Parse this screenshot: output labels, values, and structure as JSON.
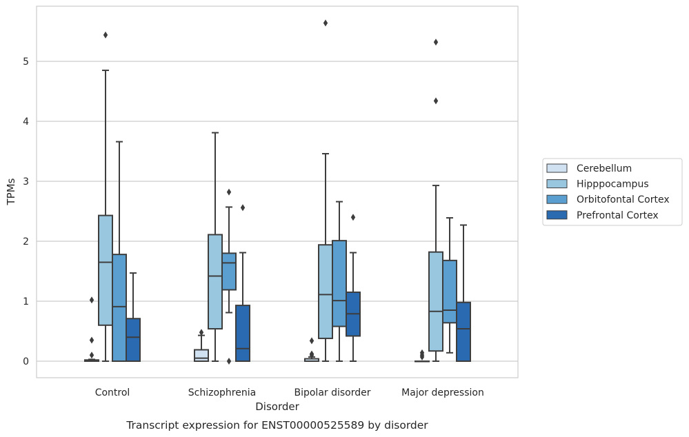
{
  "chart_data": {
    "type": "box",
    "xlabel": "Disorder",
    "ylabel": "TPMs",
    "caption": "Transcript expression for ENST00000525589 by disorder",
    "ylim": [
      -0.28,
      5.98
    ],
    "yticks": [
      0,
      1,
      2,
      3,
      4,
      5
    ],
    "grid": "horizontal",
    "legend_position": "right",
    "categories": [
      "Control",
      "Schizophrenia",
      "Bipolar disorder",
      "Major depression"
    ],
    "series": [
      {
        "name": "Cerebellum",
        "color": "#d0e1f1",
        "boxes": [
          {
            "whislo": 0.0,
            "q1": 0.0,
            "med": 0.0,
            "q3": 0.02,
            "whishi": 0.03,
            "fliers": [
              1.02,
              0.35,
              0.1
            ]
          },
          {
            "whislo": 0.0,
            "q1": 0.0,
            "med": 0.05,
            "q3": 0.19,
            "whishi": 0.43,
            "fliers": [
              0.48
            ]
          },
          {
            "whislo": 0.0,
            "q1": 0.0,
            "med": 0.0,
            "q3": 0.04,
            "whishi": 0.07,
            "fliers": [
              0.34,
              0.12,
              0.1
            ]
          },
          {
            "whislo": 0.0,
            "q1": 0.0,
            "med": 0.0,
            "q3": 0.0,
            "whishi": 0.0,
            "fliers": [
              0.14,
              0.1,
              0.07
            ]
          }
        ]
      },
      {
        "name": "Hipppocampus",
        "color": "#9ac7e0",
        "boxes": [
          {
            "whislo": 0.0,
            "q1": 0.6,
            "med": 1.65,
            "q3": 2.43,
            "whishi": 4.85,
            "fliers": [
              5.44
            ]
          },
          {
            "whislo": 0.0,
            "q1": 0.54,
            "med": 1.42,
            "q3": 2.11,
            "whishi": 3.81,
            "fliers": []
          },
          {
            "whislo": 0.0,
            "q1": 0.38,
            "med": 1.11,
            "q3": 1.94,
            "whishi": 3.46,
            "fliers": [
              5.64
            ]
          },
          {
            "whislo": 0.0,
            "q1": 0.17,
            "med": 0.83,
            "q3": 1.82,
            "whishi": 2.93,
            "fliers": [
              5.32,
              4.34
            ]
          }
        ]
      },
      {
        "name": "Orbitofontal Cortex",
        "color": "#5a9fcf",
        "boxes": [
          {
            "whislo": 0.0,
            "q1": 0.0,
            "med": 0.91,
            "q3": 1.78,
            "whishi": 3.66,
            "fliers": []
          },
          {
            "whislo": 0.81,
            "q1": 1.19,
            "med": 1.64,
            "q3": 1.8,
            "whishi": 2.57,
            "fliers": [
              2.82,
              0.0
            ]
          },
          {
            "whislo": 0.0,
            "q1": 0.58,
            "med": 1.01,
            "q3": 2.01,
            "whishi": 2.66,
            "fliers": []
          },
          {
            "whislo": 0.14,
            "q1": 0.64,
            "med": 0.85,
            "q3": 1.68,
            "whishi": 2.39,
            "fliers": []
          }
        ]
      },
      {
        "name": "Prefrontal Cortex",
        "color": "#2a6ab0",
        "boxes": [
          {
            "whislo": 0.0,
            "q1": 0.0,
            "med": 0.4,
            "q3": 0.71,
            "whishi": 1.47,
            "fliers": []
          },
          {
            "whislo": 0.0,
            "q1": 0.0,
            "med": 0.21,
            "q3": 0.93,
            "whishi": 1.81,
            "fliers": [
              2.56
            ]
          },
          {
            "whislo": 0.0,
            "q1": 0.42,
            "med": 0.79,
            "q3": 1.15,
            "whishi": 1.81,
            "fliers": [
              2.4
            ]
          },
          {
            "whislo": 0.0,
            "q1": 0.0,
            "med": 0.54,
            "q3": 0.98,
            "whishi": 2.27,
            "fliers": []
          }
        ]
      }
    ]
  }
}
